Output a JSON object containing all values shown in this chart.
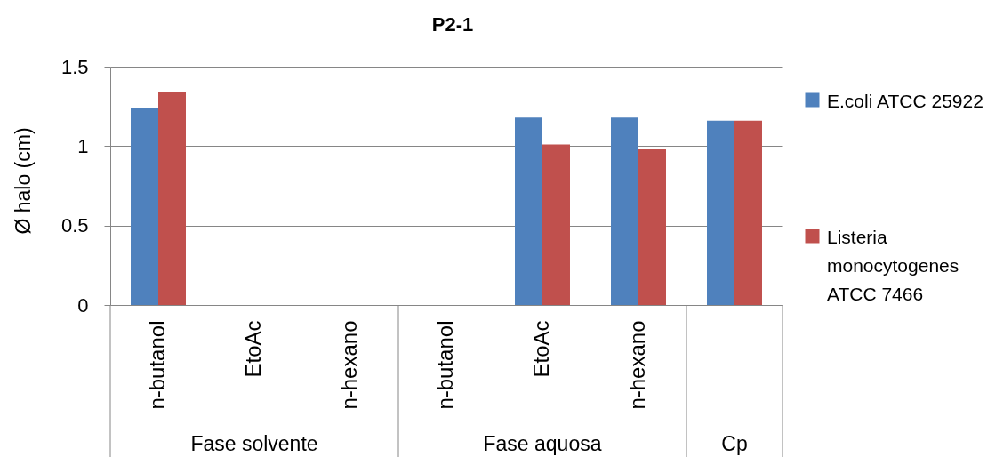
{
  "chart_data": {
    "type": "bar",
    "title": "P2-1",
    "ylabel": "Ø halo (cm)",
    "categories": [
      "n-butanol",
      "EtoAc",
      "n-hexano",
      "n-butanol",
      "EtoAc",
      "n-hexano",
      null
    ],
    "series": [
      {
        "name": "E.coli ATCC 25922",
        "color": "#4f81bd",
        "values": [
          1.24,
          0,
          0,
          0,
          1.18,
          1.18,
          1.16
        ]
      },
      {
        "name": "Listeria monocytogenes ATCC 7466",
        "color": "#c0504d",
        "values": [
          1.34,
          0,
          0,
          0,
          1.01,
          0.98,
          1.16
        ]
      }
    ],
    "ylim": [
      0,
      1.5
    ],
    "yticks": [
      0,
      0.5,
      1,
      1.5
    ],
    "grid": "y",
    "legend": "right",
    "annotations": [
      "Fase solvente",
      "Fase aquosa",
      "Cp"
    ]
  }
}
